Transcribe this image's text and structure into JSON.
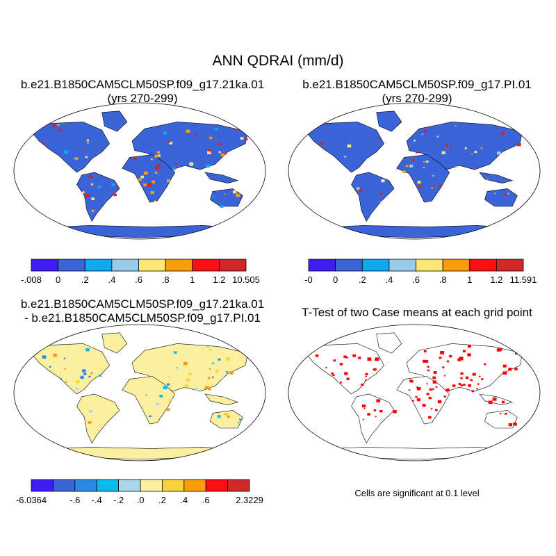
{
  "main_title": "ANN QDRAI (mm/d)",
  "panels": {
    "p1": {
      "title": "b.e21.B1850CAM5CLM50SP.f09_g17.21ka.01",
      "subtitle": "(yrs 270-299)"
    },
    "p2": {
      "title": "b.e21.B1850CAM5CLM50SP.f09_g17.PI.01",
      "subtitle": "(yrs 270-299)"
    },
    "p3": {
      "title": "b.e21.B1850CAM5CLM50SP.f09_g17.21ka.01",
      "subtitle": "- b.e21.B1850CAM5CLM50SP.f09_g17.PI.01"
    },
    "p4": {
      "title": "T-Test of two Case means at each grid point"
    }
  },
  "significance_note": "Cells are significant at 0.1 level",
  "chart_data": [
    {
      "type": "heatmap",
      "name": "p1",
      "colorbar": {
        "labels": [
          "-.008",
          "0",
          ".2",
          ".4",
          ".6",
          ".8",
          "1",
          "1.2",
          "10.505"
        ],
        "colors": [
          "#3f1cf0",
          "#3a64d8",
          "#10a8f0",
          "#98cce8",
          "#fae872",
          "#f99c0c",
          "#fa1010",
          "#d02828"
        ]
      }
    },
    {
      "type": "heatmap",
      "name": "p2",
      "colorbar": {
        "labels": [
          "-0",
          "0",
          ".2",
          ".4",
          ".6",
          ".8",
          "1",
          "1.2",
          "11.591"
        ],
        "colors": [
          "#3f1cf0",
          "#3a64d8",
          "#10a8f0",
          "#98cce8",
          "#fae872",
          "#f99c0c",
          "#fa1010",
          "#d02828"
        ]
      }
    },
    {
      "type": "heatmap",
      "name": "p3",
      "colorbar": {
        "labels": [
          "-6.0364",
          "",
          "-.6",
          "-.4",
          "-.2",
          ".0",
          ".2",
          ".4",
          ".6",
          "",
          "2.3229"
        ],
        "colors": [
          "#3f1cf0",
          "#3a64d8",
          "#2a8ae8",
          "#10b8f0",
          "#a8d8ec",
          "#faf0a0",
          "#fad23c",
          "#f99c0c",
          "#fa1010",
          "#d02828"
        ]
      }
    },
    {
      "type": "heatmap",
      "name": "p4",
      "significance_color": "#ff0000"
    }
  ]
}
